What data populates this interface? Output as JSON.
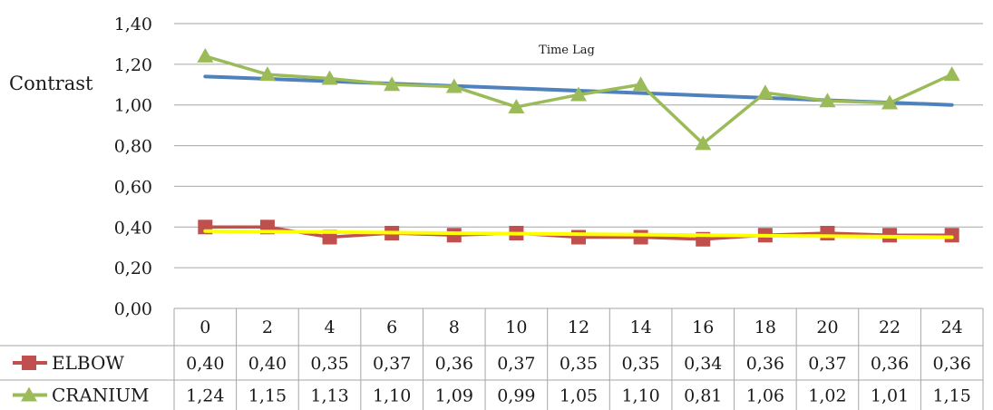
{
  "chart_data": {
    "type": "line",
    "title": "Time Lag",
    "xlabel": "",
    "ylabel": "Contrast",
    "categories": [
      "0",
      "2",
      "4",
      "6",
      "8",
      "10",
      "12",
      "14",
      "16",
      "18",
      "20",
      "22",
      "24"
    ],
    "ylim": [
      0,
      1.4
    ],
    "yticks": [
      "0,00",
      "0,20",
      "0,40",
      "0,60",
      "0,80",
      "1,00",
      "1,20",
      "1,40"
    ],
    "grid": true,
    "legend": "bottom-left (data table)",
    "series": [
      {
        "name": "ELBOW",
        "color": "#c0504d",
        "marker": "square",
        "values": [
          0.4,
          0.4,
          0.35,
          0.37,
          0.36,
          0.37,
          0.35,
          0.35,
          0.34,
          0.36,
          0.37,
          0.36,
          0.36
        ],
        "labels": [
          "0,40",
          "0,40",
          "0,35",
          "0,37",
          "0,36",
          "0,37",
          "0,35",
          "0,35",
          "0,34",
          "0,36",
          "0,37",
          "0,36",
          "0,36"
        ]
      },
      {
        "name": "CRANIUM",
        "color": "#9bbb59",
        "marker": "triangle",
        "values": [
          1.24,
          1.15,
          1.13,
          1.1,
          1.09,
          0.99,
          1.05,
          1.1,
          0.81,
          1.06,
          1.02,
          1.01,
          1.15
        ],
        "labels": [
          "1,24",
          "1,15",
          "1,13",
          "1,10",
          "1,09",
          "0,99",
          "1,05",
          "1,10",
          "0,81",
          "1,06",
          "1,02",
          "1,01",
          "1,15"
        ]
      }
    ],
    "trendlines": [
      {
        "of": "CRANIUM",
        "color": "#4f81bd",
        "start": 1.14,
        "end": 1.0
      },
      {
        "of": "ELBOW",
        "color": "#ffff00",
        "start": 0.38,
        "end": 0.35
      }
    ]
  }
}
